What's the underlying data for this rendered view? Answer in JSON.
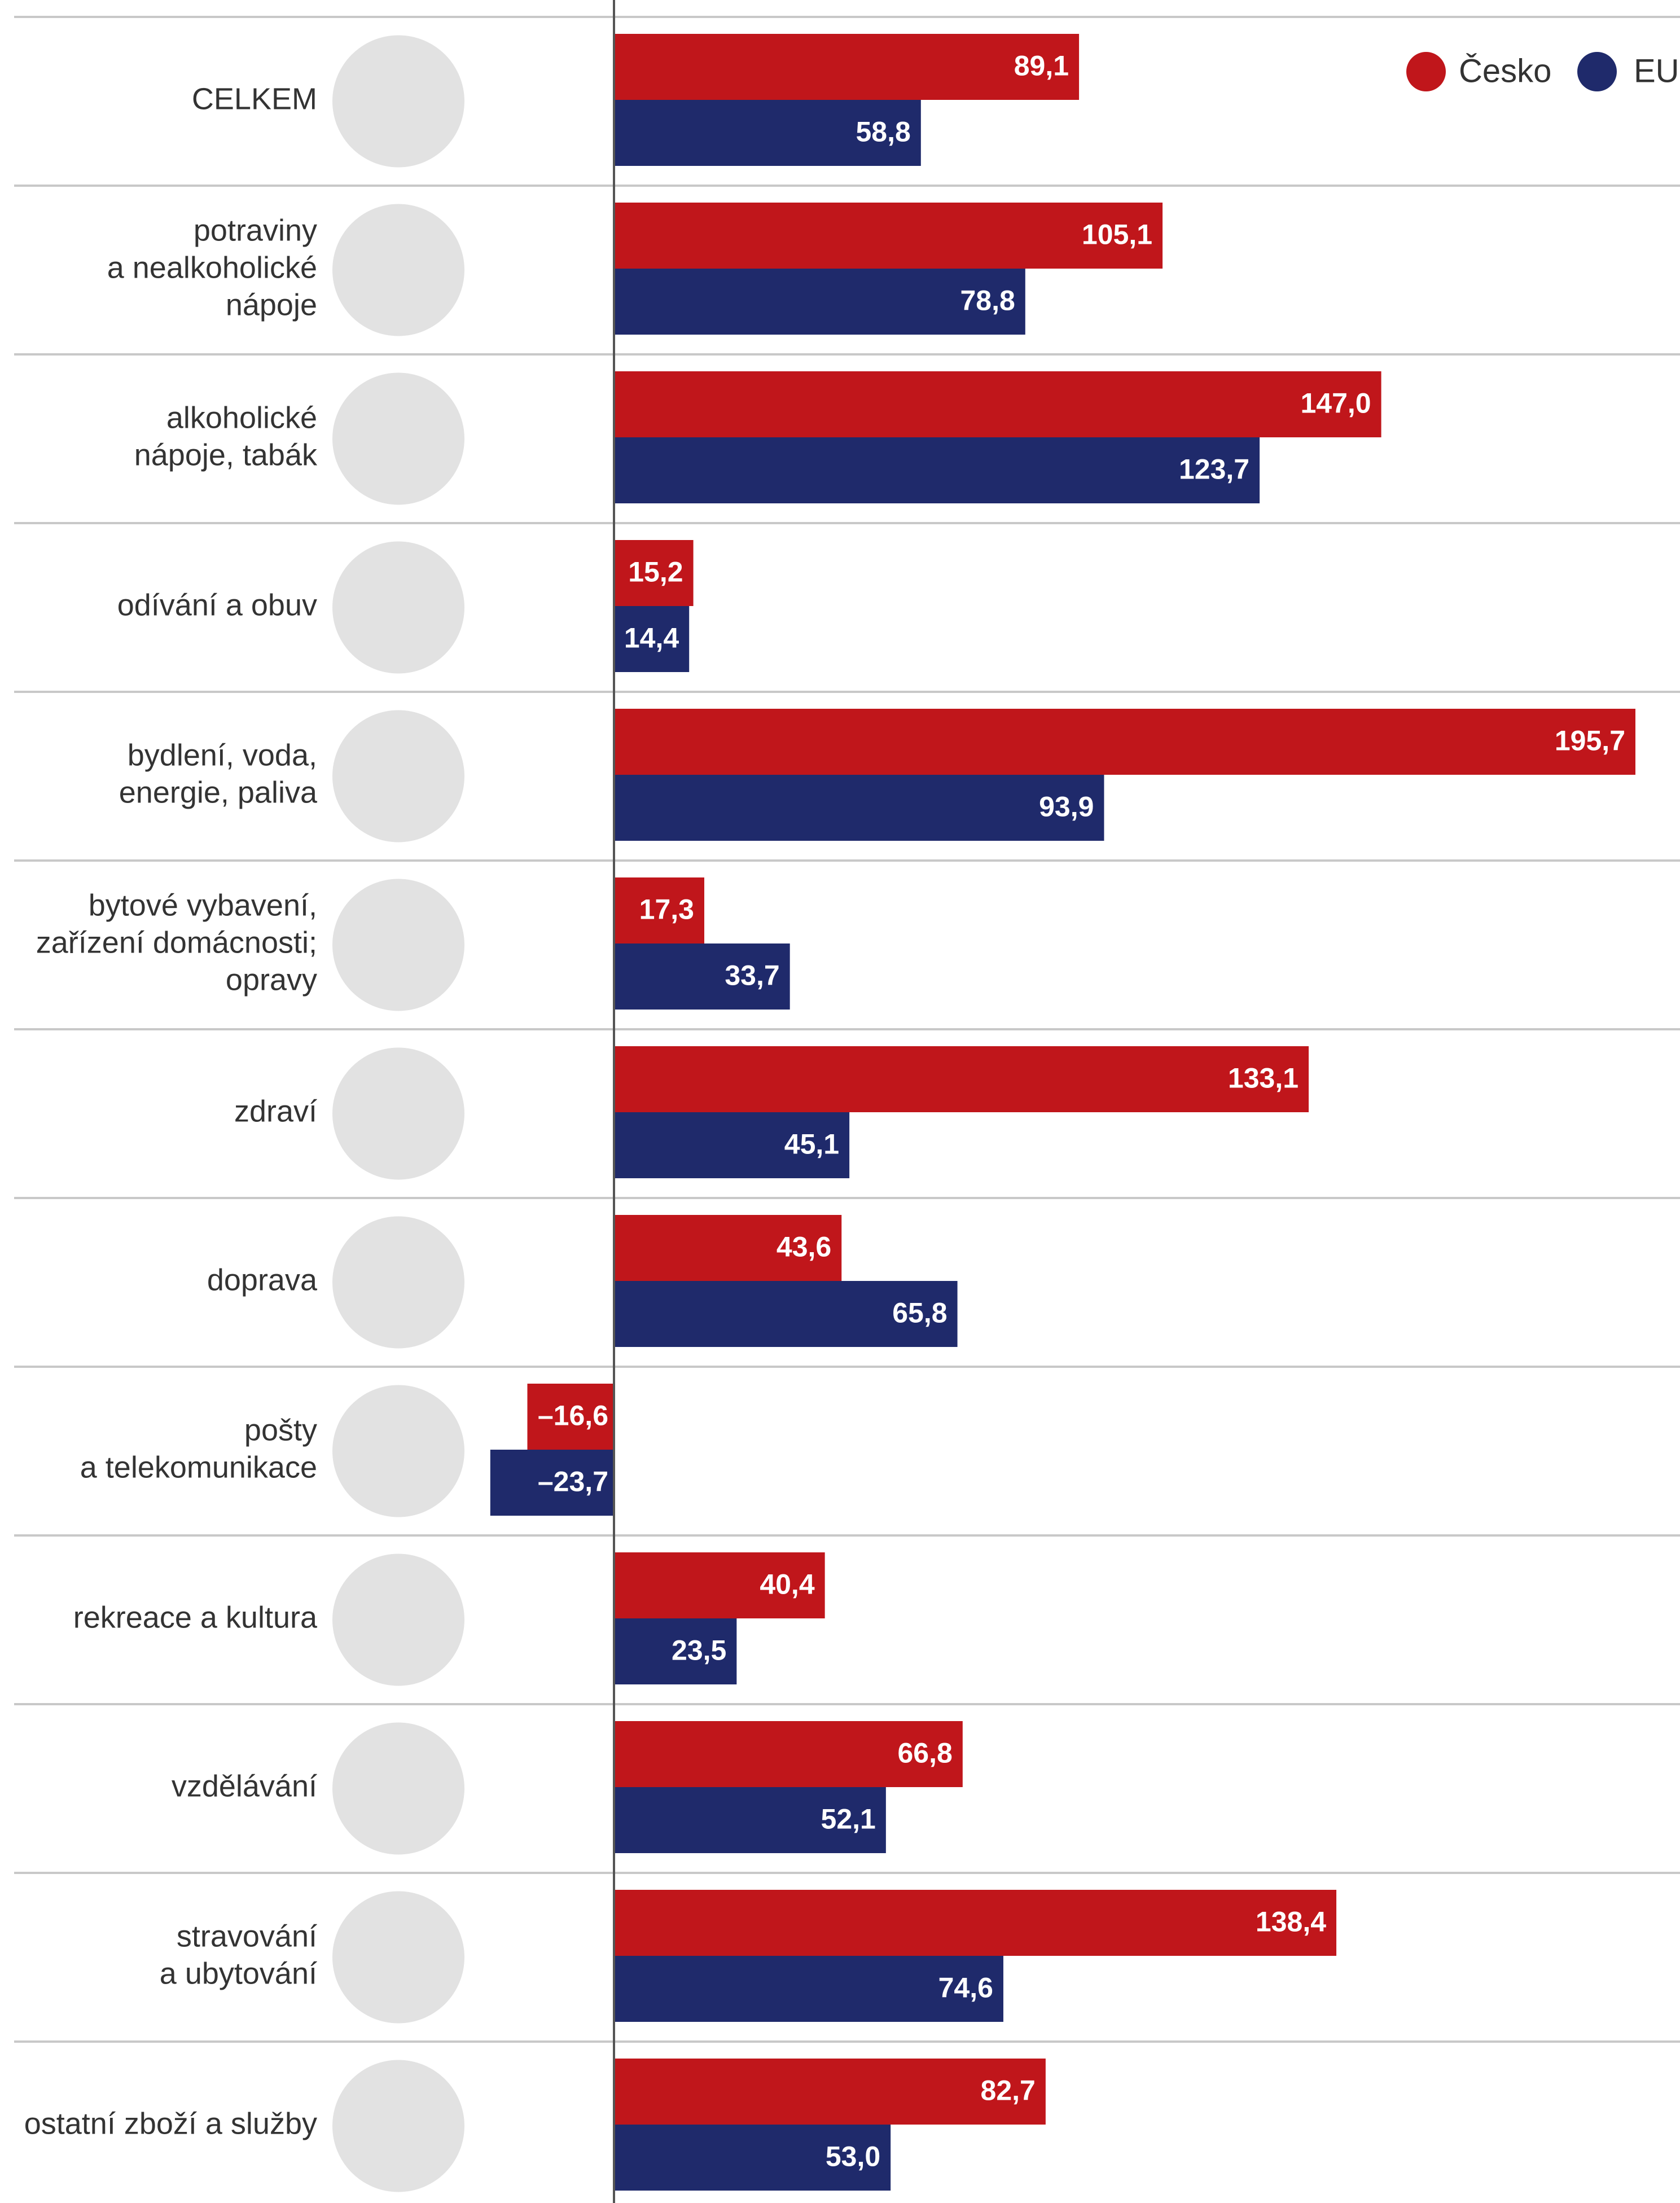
{
  "chart_data": {
    "type": "bar",
    "orientation": "horizontal",
    "categories": [
      "CELKEM",
      "potraviny\na nealkoholické\nnápoje",
      "alkoholické\nnápoje, tabák",
      "odívání a obuv",
      "bydlení, voda,\nenergie, paliva",
      "bytové vybavení,\nzařízení domácnosti;\nopravy",
      "zdraví",
      "doprava",
      "pošty\na telekomunikace",
      "rekreace a kultura",
      "vzdělávání",
      "stravování\na ubytování",
      "ostatní zboží a služby"
    ],
    "series": [
      {
        "name": "Česko",
        "color": "#c0161b",
        "values": [
          89.1,
          105.1,
          147.0,
          15.2,
          195.7,
          17.3,
          133.1,
          43.6,
          -16.6,
          40.4,
          66.8,
          138.4,
          82.7
        ],
        "value_labels": [
          "89,1",
          "105,1",
          "147,0",
          "15,2",
          "195,7",
          "17,3",
          "133,1",
          "43,6",
          "–16,6",
          "40,4",
          "66,8",
          "138,4",
          "82,7"
        ]
      },
      {
        "name": "EU",
        "color": "#1f2a6b",
        "values": [
          58.8,
          78.8,
          123.7,
          14.4,
          93.9,
          33.7,
          45.1,
          65.8,
          -23.7,
          23.5,
          52.1,
          74.6,
          53.0
        ],
        "value_labels": [
          "58,8",
          "78,8",
          "123,7",
          "14,4",
          "93,9",
          "33,7",
          "45,1",
          "65,8",
          "–23,7",
          "23,5",
          "52,1",
          "74,6",
          "53,0"
        ]
      }
    ],
    "legend": "top-right"
  }
}
